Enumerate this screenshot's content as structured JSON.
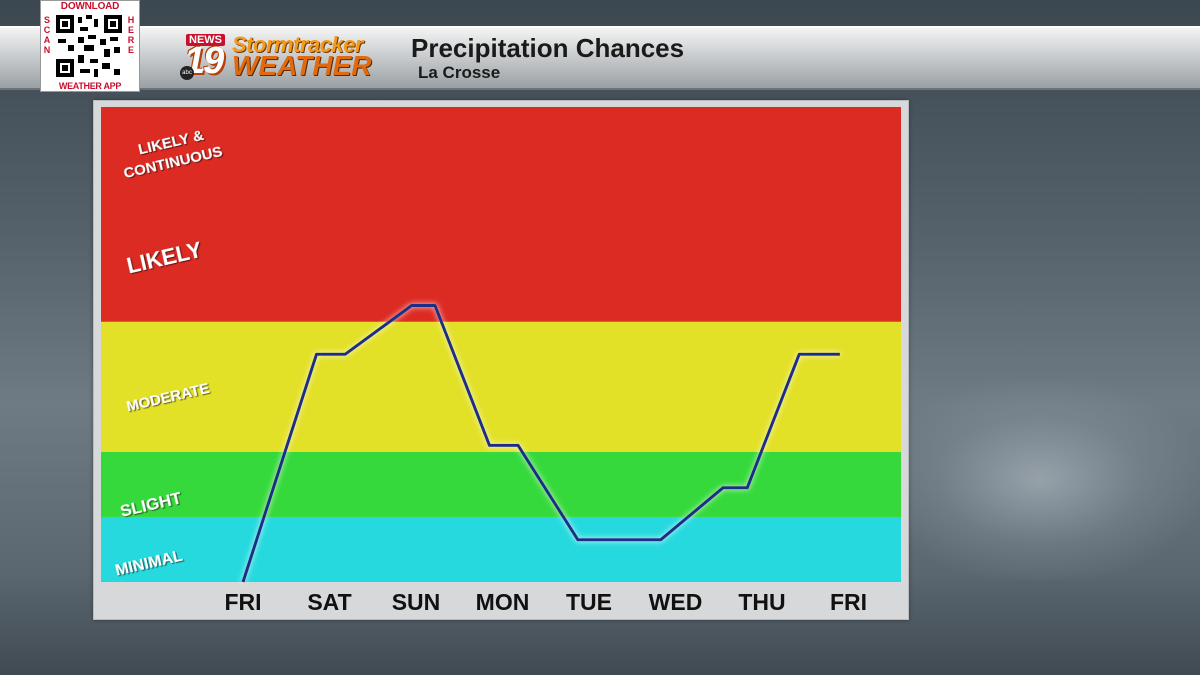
{
  "header": {
    "qr": {
      "top_text": "DOWNLOAD",
      "left_text": "SCAN",
      "right_text": "HERE",
      "bottom_text": "WEATHER APP"
    },
    "logo": {
      "news_label": "NEWS",
      "channel_number": "19",
      "network_label": "abc",
      "brand_top": "Stormtracker",
      "brand_bottom": "WEATHER"
    },
    "title": "Precipitation Chances",
    "location": "La Crosse"
  },
  "chart_data": {
    "type": "line",
    "categories": [
      "FRI",
      "SAT",
      "SUN",
      "MON",
      "TUE",
      "WED",
      "THU",
      "FRI"
    ],
    "y_categories": [
      "MINIMAL",
      "SLIGHT",
      "MODERATE",
      "LIKELY",
      "LIKELY & CONTINUOUS"
    ],
    "bands": [
      {
        "label": "MINIMAL",
        "range": [
          0,
          1
        ],
        "color": "#26d9de"
      },
      {
        "label": "SLIGHT",
        "range": [
          1,
          2
        ],
        "color": "#36d93c"
      },
      {
        "label": "MODERATE",
        "range": [
          2,
          4
        ],
        "color": "#e3e028"
      },
      {
        "label": "LIKELY",
        "range": [
          4,
          7.3
        ],
        "color": "#dc2b23"
      }
    ],
    "band_label_lines": {
      "likely_continuous": [
        "LIKELY &",
        "CONTINUOUS"
      ],
      "likely": "LIKELY",
      "moderate": "MODERATE",
      "slight": "SLIGHT",
      "minimal": "MINIMAL"
    },
    "ylim": [
      0,
      7.3
    ],
    "series": [
      {
        "color": "#1b2f86",
        "points": [
          {
            "x": 0.0,
            "y": 0.0
          },
          {
            "x": 0.85,
            "y": 3.5
          },
          {
            "x": 1.18,
            "y": 3.5
          },
          {
            "x": 1.95,
            "y": 4.25
          },
          {
            "x": 2.22,
            "y": 4.25
          },
          {
            "x": 2.85,
            "y": 2.1
          },
          {
            "x": 3.18,
            "y": 2.1
          },
          {
            "x": 3.87,
            "y": 0.65
          },
          {
            "x": 4.83,
            "y": 0.65
          },
          {
            "x": 5.55,
            "y": 1.45
          },
          {
            "x": 5.83,
            "y": 1.45
          },
          {
            "x": 6.43,
            "y": 3.5
          },
          {
            "x": 6.9,
            "y": 3.5
          }
        ]
      }
    ],
    "title": "",
    "xlabel": "",
    "ylabel": "",
    "grid": false,
    "legend": false
  }
}
